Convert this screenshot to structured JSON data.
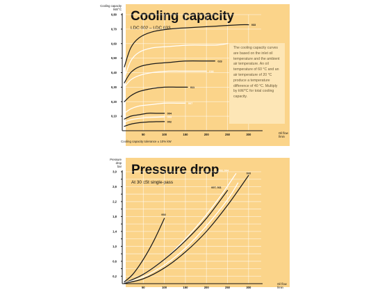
{
  "chart_data": [
    {
      "type": "line",
      "title": "Cooling capacity",
      "subtitle": "LDC 002 – LDC 033",
      "ylabel_line1": "Cooling capacity",
      "ylabel_line2": "kW/°C",
      "xlabel_line1": "Oil flow",
      "xlabel_line2": "l/min",
      "xlim": [
        0,
        330
      ],
      "ylim": [
        0,
        0.8
      ],
      "x_ticks": [
        50,
        100,
        150,
        200,
        250,
        300
      ],
      "y_ticks": [
        0.1,
        0.2,
        0.3,
        0.4,
        0.5,
        0.6,
        0.7,
        0.8
      ],
      "y_tick_labels": [
        "0,10",
        "0,20",
        "0,30",
        "0,40",
        "0,50",
        "0,60",
        "0,70",
        "0,80"
      ],
      "note": "The cooling capacity curves are based on the inlet oil temperature and the ambient air temperature. An oil temperature of 60 °C and an air temperature of 20 °C produce a temperature difference of 40 °C. Multiply by kW/°C for total cooling capacity.",
      "footnote": "Cooling capacity tolerance ± 10% kW",
      "series": [
        {
          "name": "033",
          "color": "dark",
          "x": [
            5,
            20,
            40,
            70,
            110,
            160,
            220,
            280,
            300
          ],
          "y": [
            0.44,
            0.57,
            0.64,
            0.68,
            0.7,
            0.71,
            0.72,
            0.73,
            0.73
          ]
        },
        {
          "name": "022",
          "color": "white",
          "x": [
            5,
            20,
            40,
            70,
            110,
            160,
            220,
            250
          ],
          "y": [
            0.36,
            0.48,
            0.54,
            0.57,
            0.58,
            0.59,
            0.59,
            0.6
          ]
        },
        {
          "name": "023",
          "color": "dark",
          "x": [
            5,
            20,
            40,
            70,
            110,
            150,
            200,
            220
          ],
          "y": [
            0.33,
            0.4,
            0.44,
            0.46,
            0.47,
            0.48,
            0.48,
            0.48
          ]
        },
        {
          "name": "018",
          "color": "white",
          "x": [
            5,
            20,
            40,
            70,
            110,
            150,
            200
          ],
          "y": [
            0.3,
            0.35,
            0.38,
            0.4,
            0.41,
            0.41,
            0.41
          ]
        },
        {
          "name": "011",
          "color": "dark",
          "x": [
            5,
            20,
            40,
            70,
            100,
            130,
            155
          ],
          "y": [
            0.2,
            0.24,
            0.27,
            0.29,
            0.3,
            0.3,
            0.3
          ]
        },
        {
          "name": "007",
          "color": "white",
          "x": [
            5,
            20,
            40,
            70,
            100,
            130,
            150
          ],
          "y": [
            0.12,
            0.15,
            0.17,
            0.18,
            0.19,
            0.19,
            0.19
          ]
        },
        {
          "name": "004",
          "color": "dark",
          "x": [
            5,
            20,
            40,
            60,
            80,
            100
          ],
          "y": [
            0.08,
            0.1,
            0.11,
            0.12,
            0.12,
            0.12
          ]
        },
        {
          "name": "003",
          "color": "white",
          "x": [
            5,
            20,
            40,
            60,
            80,
            100
          ],
          "y": [
            0.06,
            0.075,
            0.085,
            0.09,
            0.093,
            0.095
          ]
        },
        {
          "name": "002",
          "color": "dark",
          "x": [
            5,
            20,
            40,
            60,
            80,
            100
          ],
          "y": [
            0.03,
            0.045,
            0.055,
            0.06,
            0.062,
            0.063
          ]
        }
      ]
    },
    {
      "type": "line",
      "title": "Pressure drop",
      "subtitle": "At 30 cSt single-pass",
      "ylabel_line1": "Pressure",
      "ylabel_line2": "drop",
      "ylabel_line3": "bar",
      "xlabel_line1": "Oil flow",
      "xlabel_line2": "l/min",
      "xlim": [
        0,
        330
      ],
      "ylim": [
        0,
        3.0
      ],
      "x_ticks": [
        50,
        100,
        150,
        200,
        250,
        300
      ],
      "y_ticks": [
        0.2,
        0.4,
        0.6,
        0.8,
        1.0,
        1.2,
        1.4,
        1.6,
        1.8,
        2.0,
        2.2,
        2.4,
        2.6,
        2.8,
        3.0
      ],
      "y_tick_labels": [
        "0,2",
        "",
        "0,6",
        "",
        "1,0",
        "",
        "1,4",
        "",
        "1,8",
        "",
        "2,2",
        "",
        "2,6",
        "",
        "3,0"
      ],
      "series": [
        {
          "name": "002",
          "color": "dark",
          "x": [
            5,
            25,
            50,
            75,
            100
          ],
          "y": [
            0.05,
            0.25,
            0.65,
            1.15,
            1.75
          ]
        },
        {
          "name": "003, 004",
          "color": "white",
          "x": [
            5,
            50,
            100,
            150,
            200,
            240,
            270
          ],
          "y": [
            0.02,
            0.25,
            0.65,
            1.2,
            1.85,
            2.45,
            2.95
          ]
        },
        {
          "name": "007, 011",
          "color": "dark",
          "x": [
            5,
            50,
            100,
            150,
            200,
            250
          ],
          "y": [
            0.02,
            0.25,
            0.65,
            1.15,
            1.75,
            2.5
          ]
        },
        {
          "name": "018, 022, 023",
          "color": "white",
          "x": [
            5,
            50,
            100,
            150,
            200,
            250,
            275
          ],
          "y": [
            0.02,
            0.18,
            0.5,
            0.95,
            1.55,
            2.25,
            2.7
          ]
        },
        {
          "name": "033",
          "color": "dark",
          "x": [
            5,
            50,
            100,
            150,
            200,
            250,
            300
          ],
          "y": [
            0.01,
            0.13,
            0.42,
            0.85,
            1.4,
            2.1,
            2.9
          ]
        }
      ]
    }
  ]
}
